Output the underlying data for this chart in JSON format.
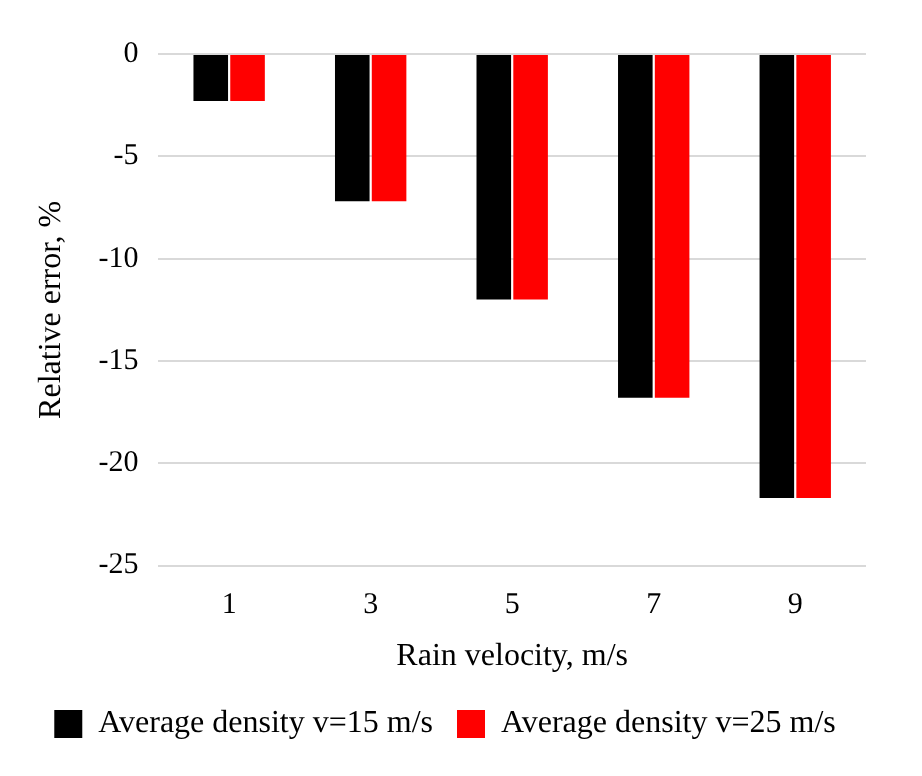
{
  "chart_data": {
    "type": "bar",
    "xlabel": "Rain velocity, m/s",
    "ylabel": "Relative error, %",
    "categories": [
      "1",
      "3",
      "5",
      "7",
      "9"
    ],
    "series": [
      {
        "name": "Average density v=15 m/s",
        "color": "#000000",
        "values": [
          -2.3,
          -7.2,
          -12.0,
          -16.8,
          -21.7
        ]
      },
      {
        "name": "Average density v=25 m/s",
        "color": "#ff0000",
        "values": [
          -2.3,
          -7.2,
          -12.0,
          -16.8,
          -21.7
        ]
      }
    ],
    "ylim": [
      -25,
      0
    ],
    "yticks": [
      -25,
      -20,
      -15,
      -10,
      -5,
      0
    ],
    "grid": "y",
    "legend": "bottom"
  }
}
